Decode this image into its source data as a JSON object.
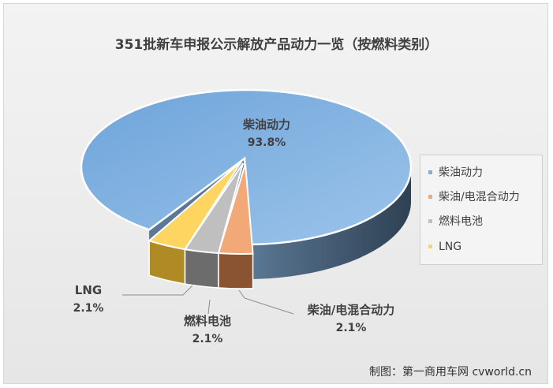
{
  "chart_data": {
    "type": "pie",
    "title": "351批新车申报公示解放产品动力一览（按燃料类别）",
    "categories": [
      "柴油动力",
      "柴油/电混合动力",
      "燃料电池",
      "LNG"
    ],
    "values": [
      93.8,
      2.1,
      2.1,
      2.1
    ],
    "value_labels": [
      "93.8%",
      "2.1%",
      "2.1%",
      "2.1%"
    ],
    "colors": [
      "#7fb0e0",
      "#f2a877",
      "#bfbfbf",
      "#ffd561"
    ],
    "side_colors": [
      "#3d5a75",
      "#8a5332",
      "#6c6c6c",
      "#b08a24"
    ],
    "legend_position": "right",
    "style": "3d-exploded"
  },
  "watermark": "制图：第一商用车网 cvworld.cn"
}
